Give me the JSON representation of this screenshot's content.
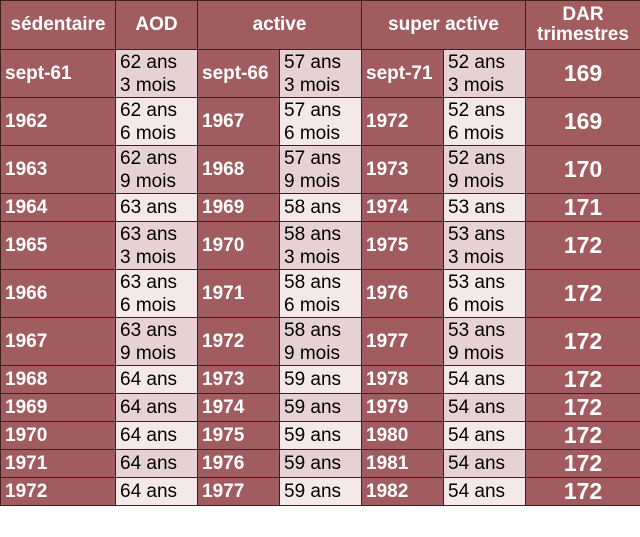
{
  "header": {
    "col1": "sédentaire",
    "col2": "AOD",
    "col3": "active",
    "col4": "super active",
    "col5": "DAR\ntrimestres"
  },
  "rows": [
    {
      "sed": "sept-61",
      "aod": "62 ans\n3 mois",
      "act": "sept-66",
      "act_age": "57 ans\n3 mois",
      "sup": "sept-71",
      "sup_age": "52 ans\n3 mois",
      "dar": "169"
    },
    {
      "sed": "1962",
      "aod": "62 ans\n6 mois",
      "act": "1967",
      "act_age": "57 ans\n6 mois",
      "sup": "1972",
      "sup_age": "52 ans\n6 mois",
      "dar": "169"
    },
    {
      "sed": "1963",
      "aod": "62 ans\n9 mois",
      "act": "1968",
      "act_age": "57 ans\n9 mois",
      "sup": "1973",
      "sup_age": "52 ans\n9 mois",
      "dar": "170"
    },
    {
      "sed": "1964",
      "aod": "63 ans",
      "act": "1969",
      "act_age": "58 ans",
      "sup": "1974",
      "sup_age": "53 ans",
      "dar": "171"
    },
    {
      "sed": "1965",
      "aod": "63 ans\n3 mois",
      "act": "1970",
      "act_age": "58 ans\n3 mois",
      "sup": "1975",
      "sup_age": "53 ans\n3 mois",
      "dar": "172"
    },
    {
      "sed": "1966",
      "aod": "63 ans\n6 mois",
      "act": "1971",
      "act_age": "58 ans\n6 mois",
      "sup": "1976",
      "sup_age": "53 ans\n6 mois",
      "dar": "172"
    },
    {
      "sed": "1967",
      "aod": "63 ans\n9 mois",
      "act": "1972",
      "act_age": "58 ans\n9 mois",
      "sup": "1977",
      "sup_age": "53 ans\n9 mois",
      "dar": "172"
    },
    {
      "sed": "1968",
      "aod": "64 ans",
      "act": "1973",
      "act_age": "59 ans",
      "sup": "1978",
      "sup_age": "54 ans",
      "dar": "172"
    },
    {
      "sed": "1969",
      "aod": "64 ans",
      "act": "1974",
      "act_age": "59 ans",
      "sup": "1979",
      "sup_age": "54 ans",
      "dar": "172"
    },
    {
      "sed": "1970",
      "aod": "64 ans",
      "act": "1975",
      "act_age": "59 ans",
      "sup": "1980",
      "sup_age": "54 ans",
      "dar": "172"
    },
    {
      "sed": "1971",
      "aod": "64 ans",
      "act": "1976",
      "act_age": "59 ans",
      "sup": "1981",
      "sup_age": "54 ans",
      "dar": "172"
    },
    {
      "sed": "1972",
      "aod": "64 ans",
      "act": "1977",
      "act_age": "59 ans",
      "sup": "1982",
      "sup_age": "54 ans",
      "dar": "172"
    }
  ],
  "colors": {
    "header_bg": "#a05c5e",
    "cell_dark": "#e6d2d2",
    "cell_light": "#f3e9e9",
    "border": "#3f2020"
  }
}
